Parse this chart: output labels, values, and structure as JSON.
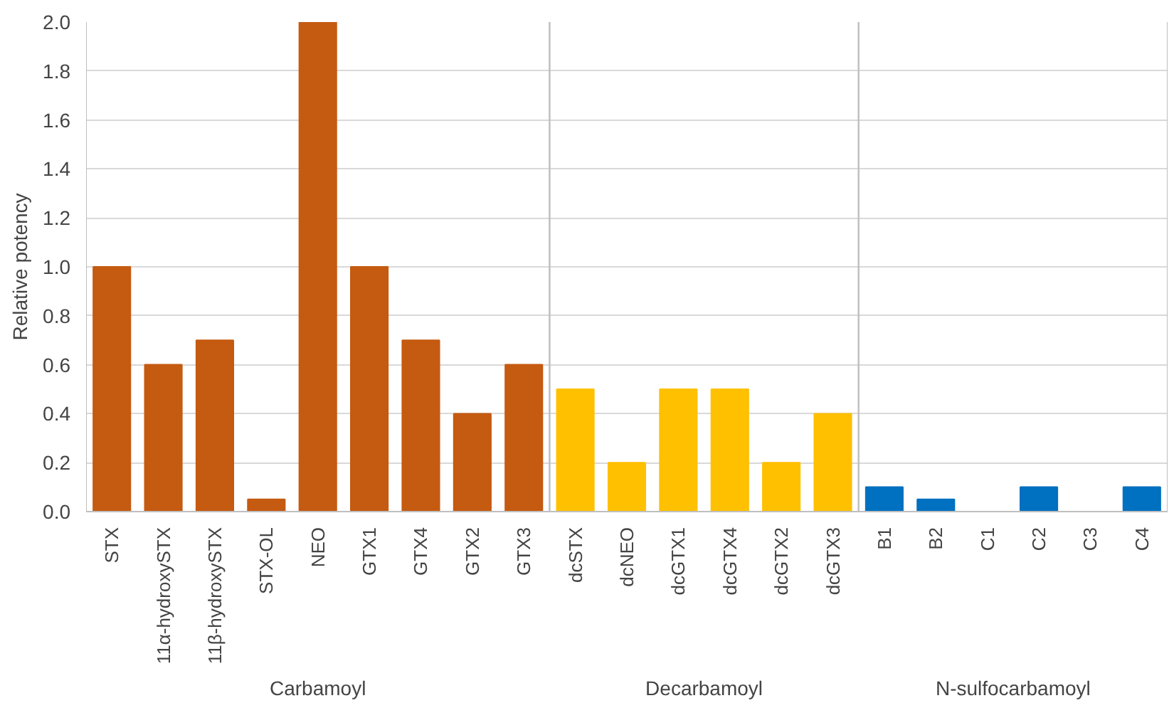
{
  "chart_data": {
    "type": "bar",
    "ylabel": "Relative potency",
    "categories": [
      "STX",
      "11α-hydroxySTX",
      "11β-hydroxySTX",
      "STX-OL",
      "NEO",
      "GTX1",
      "GTX4",
      "GTX2",
      "GTX3",
      "dcSTX",
      "dcNEO",
      "dcGTX1",
      "dcGTX4",
      "dcGTX2",
      "dcGTX3",
      "B1",
      "B2",
      "C1",
      "C2",
      "C3",
      "C4"
    ],
    "values": [
      1.0,
      0.6,
      0.7,
      0.05,
      2.0,
      1.0,
      0.7,
      0.4,
      0.6,
      0.5,
      0.2,
      0.5,
      0.5,
      0.2,
      0.4,
      0.1,
      0.05,
      0.0,
      0.1,
      0.0,
      0.1
    ],
    "colors": [
      "#c55a11",
      "#c55a11",
      "#c55a11",
      "#c55a11",
      "#c55a11",
      "#c55a11",
      "#c55a11",
      "#c55a11",
      "#c55a11",
      "#ffc000",
      "#ffc000",
      "#ffc000",
      "#ffc000",
      "#ffc000",
      "#ffc000",
      "#0070c0",
      "#0070c0",
      "#0070c0",
      "#0070c0",
      "#0070c0",
      "#0070c0"
    ],
    "ylim": [
      0,
      2.0
    ],
    "yticks": [
      {
        "value": 0,
        "label": "0.0"
      },
      {
        "value": 0.2,
        "label": "0.2"
      },
      {
        "value": 0.4,
        "label": "0.4"
      },
      {
        "value": 0.6,
        "label": "0.6"
      },
      {
        "value": 0.8,
        "label": "0.8"
      },
      {
        "value": 1.0,
        "label": "1.0"
      },
      {
        "value": 1.2,
        "label": "1.2"
      },
      {
        "value": 1.4,
        "label": "1.4"
      },
      {
        "value": 1.6,
        "label": "1.6"
      },
      {
        "value": 1.8,
        "label": "1.8"
      },
      {
        "value": 2.0,
        "label": "2.0"
      }
    ],
    "grid": "y",
    "annotations": [
      "Carbamoyl",
      "Decarbamoyl",
      "N-sulfocarbamoyl"
    ]
  }
}
